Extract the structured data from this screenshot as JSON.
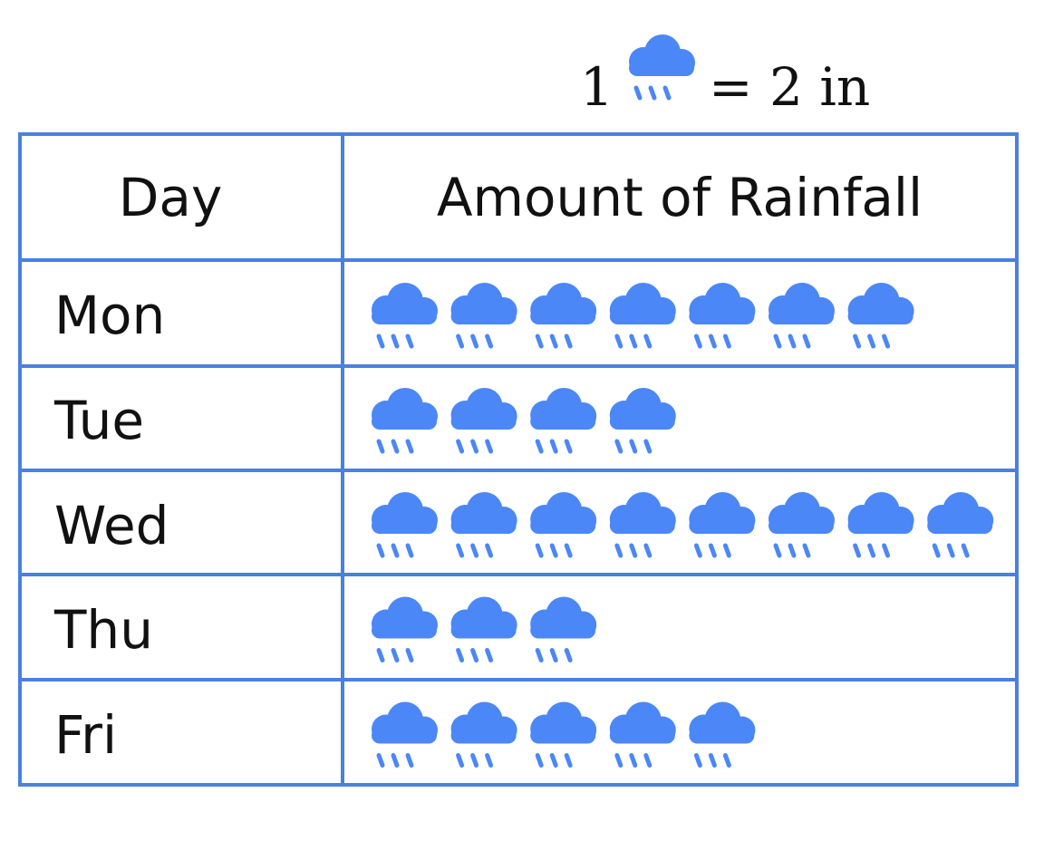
{
  "chart_data": {
    "type": "pictograph",
    "key": {
      "count": "1",
      "equals_text": "= 2 in",
      "icon": "rain-cloud-icon"
    },
    "columns": [
      "Day",
      "Amount of Rainfall"
    ],
    "categories": [
      "Mon",
      "Tue",
      "Wed",
      "Thu",
      "Fri"
    ],
    "icon_counts": [
      7,
      4,
      8,
      3,
      5
    ],
    "values": [
      14,
      8,
      16,
      6,
      10
    ],
    "unit": "in",
    "icon_color": "#4B87F6",
    "border_color": "#4A80E0"
  }
}
